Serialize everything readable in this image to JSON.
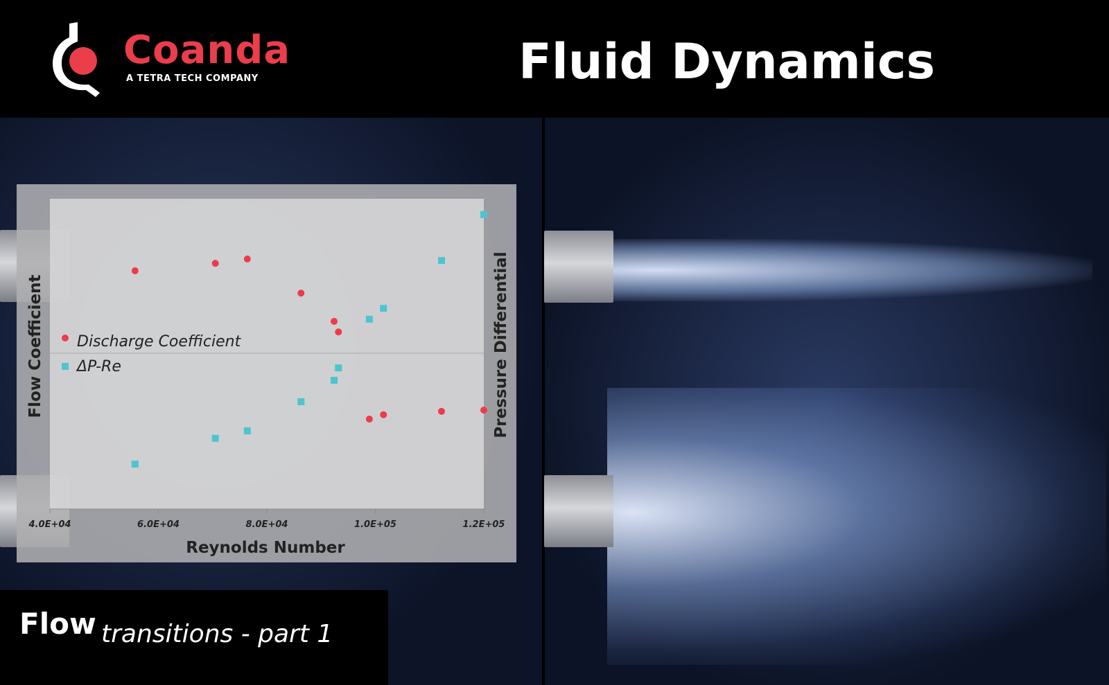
{
  "header": {
    "brand": "Coanda",
    "tagline": "A TETRA TECH COMPANY",
    "title": "Fluid Dynamics"
  },
  "footer": {
    "title": "Flow",
    "subtitle": "transitions - part 1"
  },
  "colors": {
    "brand_red": "#ea3e4b",
    "discharge": "#ee3b4a",
    "dp": "#4ec4d0"
  },
  "chart_data": {
    "type": "scatter",
    "xlabel": "Reynolds Number",
    "ylabel": "Flow Coefficient",
    "y2label": "Pressure Differential",
    "xlim": [
      40000,
      120000
    ],
    "xticks": [
      "4.0E+04",
      "6.0E+04",
      "8.0E+04",
      "1.0E+05",
      "1.2E+05"
    ],
    "xtick_values": [
      40000,
      60000,
      80000,
      100000,
      120000
    ],
    "ylim": [
      0,
      100
    ],
    "grid": "single horizontal midline",
    "legend": "left-middle",
    "series": [
      {
        "name": "Discharge Coefficient",
        "marker": "circle",
        "color": "#ee3b4a",
        "x": [
          55700,
          70500,
          76400,
          86300,
          92400,
          93200,
          98900,
          101500,
          112200,
          120000
        ],
        "y": [
          76.8,
          79.2,
          80.6,
          69.6,
          60.5,
          57.1,
          29.0,
          30.4,
          31.5,
          31.9
        ]
      },
      {
        "name": "ΔP-Re",
        "marker": "square",
        "color": "#4ec4d0",
        "x": [
          55700,
          70500,
          76400,
          86300,
          92400,
          93200,
          98900,
          101500,
          112200,
          120000
        ],
        "y": [
          14.5,
          22.8,
          25.2,
          34.6,
          41.5,
          45.5,
          61.2,
          64.7,
          80.1,
          94.9
        ]
      }
    ]
  }
}
